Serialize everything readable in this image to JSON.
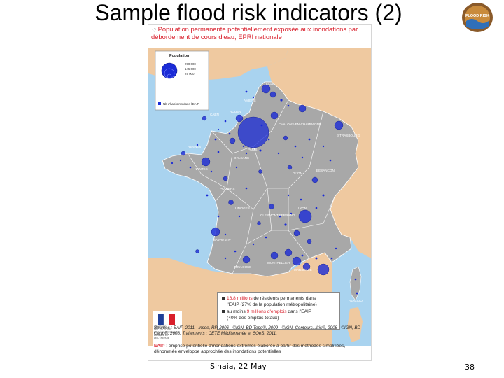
{
  "slide": {
    "title": "Sample flood risk indicators (2)",
    "footer_date": "Sinaia, 22 May",
    "page_number": "38",
    "logo_text": "FLOOD RISK"
  },
  "map": {
    "heading": "Population permanente potentiellement exposée aux inondations par débordement de cours d'eau, EPRI nationale",
    "legend": {
      "title": "Population",
      "values": [
        "290 000",
        "145 000",
        "29 000"
      ],
      "symbol_note": "Nb d'habitants dans l'EAIP"
    },
    "cities": [
      "LILLE",
      "AMIENS",
      "ROUEN",
      "CAEN",
      "PARIS",
      "CHALONS-EN-CHAMPAGNE",
      "STRASBOURG",
      "RENNES",
      "ORLEANS",
      "NANTES",
      "DIJON",
      "BESANCON",
      "POITIERS",
      "LIMOGES",
      "CLERMONT-FERRAND",
      "LYON",
      "BORDEAUX",
      "TOULOUSE",
      "MONTPELLIER",
      "MARSEILLE",
      "AJACCIO"
    ],
    "stats": {
      "line1_red": "16,8 millions",
      "line1_rest": " de résidents permanents dans",
      "line2": "l'EAIP (27% de la population métropolitaine)",
      "line3_pre": "au moins ",
      "line3_red": "9 millions d'emplois",
      "line3_post": " dans l'EAIP",
      "line4": "(40% des emplois totaux)"
    },
    "flag_caption": [
      "MINISTÈRE",
      "DE L'ÉCOLOGIE,",
      "DU DÉVELOPPEMENT",
      "DURABLE ET",
      "DE L'ÉNERGIE"
    ],
    "sources": "Sources : EAIP, 2011 - Insee, RP, 2006 - ©IGN, BD Topo®, 2009 - ©IGN, Contours...Iris®, 2008 - ©IGN, BD Carto®, 2008. Traitements : CETE Méditerranée et SOeS, 2011.",
    "eaip_label": "EAIP",
    "eaip_definition": " : emprise potentielle d'inondations extrêmes élaborée à partir des méthodes simplifiées, dénommée enveloppe approchée des inondations potentielles",
    "colors": {
      "land_france": "#a8a8a8",
      "land_neighbors": "#efc9a0",
      "sea": "#a9d3ef",
      "dots": "#1a2bd6",
      "heading_red": "#d91f2b"
    }
  }
}
